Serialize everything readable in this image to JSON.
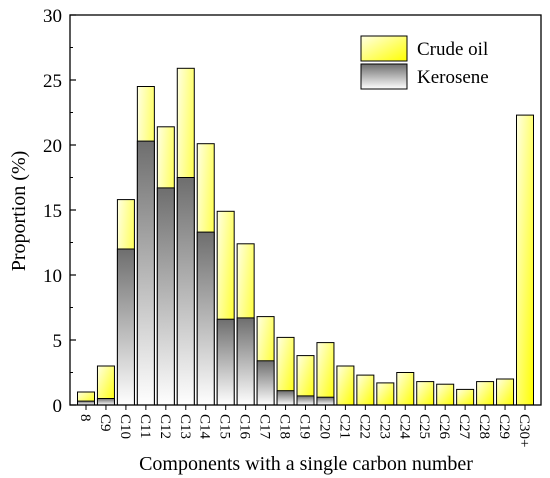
{
  "chart_data": {
    "type": "bar",
    "mode": "overlay",
    "categories": [
      "C8",
      "C9",
      "C10",
      "C11",
      "C12",
      "C13",
      "C14",
      "C15",
      "C16",
      "C17",
      "C18",
      "C19",
      "C20",
      "C21",
      "C22",
      "C23",
      "C24",
      "C25",
      "C26",
      "C27",
      "C28",
      "C29",
      "C30+"
    ],
    "tick_labels": [
      "8",
      "C9",
      "C10",
      "C11",
      "C12",
      "C13",
      "C14",
      "C15",
      "C16",
      "C17",
      "C18",
      "C19",
      "C20",
      "C21",
      "C22",
      "C23",
      "C24",
      "C25",
      "C26",
      "C27",
      "C28",
      "C29",
      "C30+"
    ],
    "series": [
      {
        "name": "Crude oil",
        "fill": "yellow-gradient",
        "values": [
          1.0,
          3.0,
          15.8,
          24.5,
          21.4,
          25.9,
          20.1,
          14.9,
          12.4,
          6.8,
          5.2,
          3.8,
          4.8,
          3.0,
          2.3,
          1.7,
          2.5,
          1.8,
          1.6,
          1.2,
          1.8,
          2.0,
          22.3
        ]
      },
      {
        "name": "Kerosene",
        "fill": "gray-gradient",
        "values": [
          0.3,
          0.5,
          12.0,
          20.3,
          16.7,
          17.5,
          13.3,
          6.6,
          6.7,
          3.4,
          1.1,
          0.7,
          0.6,
          0,
          0,
          0,
          0,
          0,
          0,
          0,
          0,
          0,
          0
        ]
      }
    ],
    "xlabel": "Components with a single carbon number",
    "ylabel": "Proportion (%)",
    "ylim": [
      0,
      30
    ],
    "yticks": [
      0,
      5,
      10,
      15,
      20,
      25,
      30
    ],
    "legend_position": "top-right",
    "grid": false,
    "colors": {
      "crude_light": "#ffffe0",
      "crude_dark": "#ffff00",
      "kero_light": "#ffffff",
      "kero_dark": "#707070"
    }
  }
}
